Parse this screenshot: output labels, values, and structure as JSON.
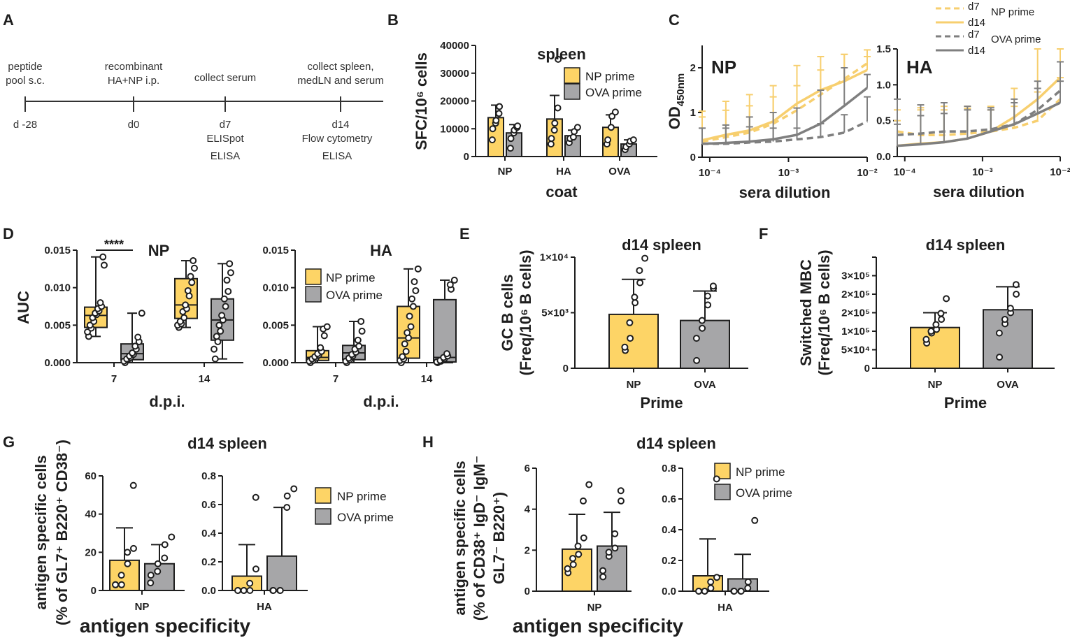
{
  "colors": {
    "np": "#FDD466",
    "ova": "#A6A6A8",
    "np_line": "#F7CF6F",
    "ova_line": "#7F7F7F",
    "axis": "#1e1e1e"
  },
  "panels": {
    "A": "A",
    "B": "B",
    "C": "C",
    "D": "D",
    "E": "E",
    "F": "F",
    "G": "G",
    "H": "H"
  },
  "timeline": {
    "events": [
      {
        "top": "peptide",
        "top2": "pool s.c.",
        "day": "d -28",
        "below1": "",
        "below2": ""
      },
      {
        "top": "recombinant",
        "top2": "HA+NP i.p.",
        "day": "d0",
        "below1": "",
        "below2": ""
      },
      {
        "top": "collect serum",
        "top2": "",
        "day": "d7",
        "below1": "ELISpot",
        "below2": "ELISA"
      },
      {
        "top": "collect spleen,",
        "top2": "medLN and serum",
        "day": "d14",
        "below1": "Flow cytometry",
        "below2": "ELISA"
      }
    ]
  },
  "legend": {
    "np_prime": "NP prime",
    "ova_prime": "OVA prime",
    "d7": "d7",
    "d14": "d14"
  },
  "chart_data": [
    {
      "id": "B",
      "type": "bar",
      "title": "spleen",
      "ylabel": "SFC/10⁶ cells",
      "xlabel": "coat",
      "ylim": [
        0,
        40000
      ],
      "yticks": [
        0,
        10000,
        20000,
        30000,
        40000
      ],
      "categories": [
        "NP",
        "HA",
        "OVA"
      ],
      "series": [
        {
          "name": "NP prime",
          "values": [
            14000,
            13500,
            10500
          ],
          "err": [
            4500,
            8500,
            4500
          ],
          "points": [
            [
              6000,
              10000,
              12000,
              13000,
              15500,
              18000
            ],
            [
              4500,
              6500,
              9500,
              12000,
              17500,
              35000
            ],
            [
              4500,
              6000,
              10500,
              14500,
              16000
            ]
          ]
        },
        {
          "name": "OVA prime",
          "values": [
            8500,
            7500,
            4500
          ],
          "err": [
            3000,
            2000,
            1500
          ],
          "points": [
            [
              3000,
              6500,
              8500,
              9500,
              10500,
              11000
            ],
            [
              5000,
              6500,
              7000,
              9000,
              10500
            ],
            [
              2500,
              3500,
              4500,
              5500,
              6000
            ]
          ]
        }
      ]
    },
    {
      "id": "C-NP",
      "type": "line",
      "title": "NP",
      "ylabel": "OD450nm",
      "xlabel": "sera dilution",
      "xscale": "log",
      "xlim": [
        8e-05,
        0.01
      ],
      "ylim": [
        0,
        2.5
      ],
      "xticks": [
        "10⁻⁴",
        "10⁻³",
        "10⁻²"
      ],
      "yticks": [
        0,
        1,
        2
      ],
      "x": [
        8e-05,
        0.00016,
        0.00032,
        0.00064,
        0.00128,
        0.00256,
        0.00512,
        0.01
      ],
      "series": [
        {
          "name": "NP prime d7",
          "values": [
            0.35,
            0.45,
            0.55,
            0.75,
            1.05,
            1.4,
            1.75,
            2.1
          ],
          "err": [
            0.55,
            0.6,
            0.6,
            0.6,
            0.55,
            0.55,
            0.55,
            0.3
          ]
        },
        {
          "name": "NP prime d14",
          "values": [
            0.38,
            0.5,
            0.6,
            0.8,
            1.2,
            1.5,
            1.7,
            1.95
          ],
          "err": [
            0.65,
            0.75,
            0.8,
            0.8,
            0.85,
            0.75,
            0.6,
            0.3
          ]
        },
        {
          "name": "OVA prime d7",
          "values": [
            0.3,
            0.3,
            0.33,
            0.35,
            0.4,
            0.45,
            0.55,
            0.8
          ],
          "err": [
            0.35,
            0.35,
            0.35,
            0.3,
            0.25,
            0.3,
            0.4,
            0.55
          ]
        },
        {
          "name": "OVA prime d14",
          "values": [
            0.3,
            0.32,
            0.35,
            0.4,
            0.5,
            0.75,
            1.15,
            1.55
          ],
          "err": [
            0.35,
            0.4,
            0.55,
            0.6,
            0.6,
            0.75,
            0.85,
            0.3
          ]
        }
      ]
    },
    {
      "id": "C-HA",
      "type": "line",
      "title": "HA",
      "ylabel": "",
      "xlabel": "sera dilution",
      "xscale": "log",
      "xlim": [
        8e-05,
        0.01
      ],
      "ylim": [
        0,
        1.5
      ],
      "xticks": [
        "10⁻⁴",
        "10⁻³",
        "10⁻²"
      ],
      "yticks": [
        0.0,
        0.5,
        1.0,
        1.5
      ],
      "x": [
        8e-05,
        0.00016,
        0.00032,
        0.00064,
        0.00128,
        0.00256,
        0.00512,
        0.01
      ],
      "series": [
        {
          "name": "NP prime d7",
          "values": [
            0.35,
            0.3,
            0.3,
            0.32,
            0.35,
            0.4,
            0.5,
            0.8
          ],
          "err": [
            0.3,
            0.35,
            0.4,
            0.35,
            0.35,
            0.3,
            0.4,
            0.3
          ]
        },
        {
          "name": "NP prime d14",
          "values": [
            0.15,
            0.18,
            0.2,
            0.25,
            0.35,
            0.55,
            0.8,
            1.1
          ],
          "err": [
            0.35,
            0.5,
            0.45,
            0.45,
            0.3,
            0.4,
            0.7,
            0.4
          ]
        },
        {
          "name": "OVA prime d7",
          "values": [
            0.3,
            0.32,
            0.35,
            0.35,
            0.38,
            0.45,
            0.65,
            0.92
          ],
          "err": [
            0.5,
            0.4,
            0.4,
            0.35,
            0.3,
            0.3,
            0.4,
            0.4
          ]
        },
        {
          "name": "OVA prime d14",
          "values": [
            0.15,
            0.17,
            0.2,
            0.25,
            0.35,
            0.45,
            0.6,
            0.75
          ],
          "err": [
            0.3,
            0.4,
            0.4,
            0.4,
            0.3,
            0.35,
            0.35,
            0.3
          ]
        }
      ]
    },
    {
      "id": "D-NP",
      "type": "box",
      "title": "NP",
      "significance": "****",
      "ylabel": "AUC",
      "xlabel": "d.p.i.",
      "ylim": [
        0,
        0.015
      ],
      "yticks": [
        "0.000",
        "0.005",
        "0.010",
        "0.015"
      ],
      "categories": [
        "7",
        "14"
      ],
      "series": [
        {
          "name": "NP prime",
          "boxes": [
            [
              0.0035,
              0.0047,
              0.0063,
              0.0074,
              0.0141
            ],
            [
              0.0047,
              0.0059,
              0.0077,
              0.0112,
              0.0136
            ]
          ],
          "points": [
            [
              0.0035,
              0.0041,
              0.0046,
              0.005,
              0.0055,
              0.006,
              0.0064,
              0.0066,
              0.0069,
              0.0072,
              0.0075,
              0.008,
              0.013,
              0.0141
            ],
            [
              0.0047,
              0.005,
              0.0052,
              0.0055,
              0.006,
              0.0068,
              0.0072,
              0.0077,
              0.0089,
              0.0096,
              0.0107,
              0.0115,
              0.0126,
              0.0136
            ]
          ]
        },
        {
          "name": "OVA prime",
          "boxes": [
            [
              0.0,
              0.0004,
              0.0012,
              0.0025,
              0.0066
            ],
            [
              0.0005,
              0.003,
              0.0057,
              0.0085,
              0.0132
            ]
          ],
          "points": [
            [
              0.0,
              0.0002,
              0.0004,
              0.0005,
              0.0007,
              0.0009,
              0.0011,
              0.0013,
              0.0018,
              0.0022,
              0.0028,
              0.0034,
              0.0066
            ],
            [
              0.0005,
              0.0018,
              0.0028,
              0.0035,
              0.0042,
              0.005,
              0.0057,
              0.0063,
              0.0075,
              0.0085,
              0.0095,
              0.011,
              0.012,
              0.0132
            ]
          ]
        }
      ]
    },
    {
      "id": "D-HA",
      "type": "box",
      "title": "HA",
      "ylabel": "",
      "xlabel": "d.p.i.",
      "ylim": [
        0,
        0.015
      ],
      "yticks": [
        "0.000",
        "0.005",
        "0.010",
        "0.015"
      ],
      "categories": [
        "7",
        "14"
      ],
      "series": [
        {
          "name": "NP prime",
          "boxes": [
            [
              0.0,
              0.0003,
              0.0007,
              0.0016,
              0.0048
            ],
            [
              0.0,
              0.0006,
              0.0033,
              0.0075,
              0.0125
            ]
          ],
          "points": [
            [
              0.0,
              0.0002,
              0.0003,
              0.0005,
              0.0006,
              0.0008,
              0.001,
              0.0012,
              0.0015,
              0.002,
              0.0036,
              0.0045,
              0.0048
            ],
            [
              0.0,
              0.0003,
              0.0005,
              0.0008,
              0.0015,
              0.0025,
              0.0033,
              0.004,
              0.0048,
              0.0062,
              0.0075,
              0.0085,
              0.0096,
              0.0108,
              0.0125
            ]
          ]
        },
        {
          "name": "OVA prime",
          "boxes": [
            [
              0.0,
              0.0004,
              0.0013,
              0.0023,
              0.0055
            ],
            [
              0.0,
              0.0001,
              0.0007,
              0.0084,
              0.011
            ]
          ],
          "points": [
            [
              0.0,
              0.0002,
              0.0004,
              0.0006,
              0.0009,
              0.0011,
              0.0014,
              0.0018,
              0.0022,
              0.003,
              0.0042,
              0.0055
            ],
            [
              0.0,
              0.0001,
              0.0002,
              0.0003,
              0.0005,
              0.0007,
              0.0009,
              0.0012,
              0.0098,
              0.0104,
              0.011
            ]
          ]
        }
      ]
    },
    {
      "id": "E",
      "type": "bar",
      "title": "d14 spleen",
      "ylabel": "GC B cells",
      "ylabel2": "(Freq/10⁶ B cells)",
      "xlabel": "Prime",
      "ylim": [
        0,
        10000
      ],
      "yticks": [
        "0",
        "5×10³",
        "1×10⁴"
      ],
      "categories": [
        "NP",
        "OVA"
      ],
      "values": [
        4850,
        4300
      ],
      "err": [
        3150,
        2650
      ],
      "points": [
        [
          1600,
          1900,
          2700,
          4100,
          5900,
          6400,
          7700,
          8800,
          9900
        ],
        [
          700,
          2700,
          3600,
          4300,
          5700,
          6500,
          7200,
          7400
        ]
      ]
    },
    {
      "id": "F",
      "type": "bar",
      "title": "d14 spleen",
      "ylabel": "Switched MBC",
      "ylabel2": "(Freq/10⁶ B cells)",
      "xlabel": "Prime",
      "ylim": [
        0,
        300000
      ],
      "yticks": [
        "0",
        "5×10⁴",
        "1×10⁵",
        "2×10⁵",
        "2×10⁵",
        "3×10⁵"
      ],
      "categories": [
        "NP",
        "OVA"
      ],
      "values": [
        110000,
        158000
      ],
      "err": [
        40000,
        62000
      ],
      "points": [
        [
          68000,
          78000,
          95000,
          100000,
          105000,
          118000,
          132000,
          148000,
          188000
        ],
        [
          30000,
          95000,
          120000,
          132000,
          150000,
          162000,
          200000,
          226000
        ]
      ]
    },
    {
      "id": "G-NP",
      "type": "bar",
      "title": "d14 spleen",
      "ylabel": "antigen specific cells",
      "ylabel2": "(% of GL7⁺ B220⁺ CD38⁻)",
      "xlabel": "antigen specificity",
      "ylim": [
        0,
        60
      ],
      "yticks": [
        "0",
        "20",
        "40",
        "60"
      ],
      "categories": [
        "NP"
      ],
      "series": [
        {
          "name": "NP prime",
          "values": [
            15.8
          ],
          "err": [
            17
          ],
          "points": [
            [
              3,
              3,
              3,
              8,
              14,
              20,
              22,
              55
            ]
          ]
        },
        {
          "name": "OVA prime",
          "values": [
            14
          ],
          "err": [
            10
          ],
          "points": [
            [
              4,
              8,
              10,
              14,
              17,
              24,
              28
            ]
          ]
        }
      ]
    },
    {
      "id": "G-HA",
      "type": "bar",
      "ylim": [
        0,
        0.8
      ],
      "yticks": [
        "0.0",
        "0.2",
        "0.4",
        "0.6",
        "0.8"
      ],
      "categories": [
        "HA"
      ],
      "series": [
        {
          "name": "NP prime",
          "values": [
            0.1
          ],
          "err": [
            0.22
          ],
          "points": [
            [
              0,
              0,
              0,
              0,
              0,
              0.05,
              0.15,
              0.65
            ]
          ]
        },
        {
          "name": "OVA prime",
          "values": [
            0.24
          ],
          "err": [
            0.34
          ],
          "points": [
            [
              0,
              0,
              0,
              0,
              0.58,
              0.66,
              0.71
            ]
          ]
        }
      ]
    },
    {
      "id": "H-NP",
      "type": "bar",
      "title": "d14 spleen",
      "ylabel": "antigen specific cells",
      "ylabel2": "(% of CD38⁺ IgD⁻ IgM⁻",
      "ylabel3": "GL7⁻ B220⁺)",
      "xlabel": "antigen specificity",
      "ylim": [
        0,
        6
      ],
      "yticks": [
        "0",
        "2",
        "4",
        "6"
      ],
      "categories": [
        "NP"
      ],
      "series": [
        {
          "name": "NP prime",
          "values": [
            2.05
          ],
          "err": [
            1.7
          ],
          "points": [
            [
              0.9,
              1.1,
              1.3,
              1.6,
              1.8,
              2.2,
              2.6,
              4.4,
              5.2
            ]
          ]
        },
        {
          "name": "OVA prime",
          "values": [
            2.2
          ],
          "err": [
            1.65
          ],
          "points": [
            [
              0.7,
              1.0,
              1.7,
              1.9,
              2.1,
              2.8,
              4.4,
              4.9
            ]
          ]
        }
      ]
    },
    {
      "id": "H-HA",
      "type": "bar",
      "ylim": [
        0,
        0.8
      ],
      "yticks": [
        "0.0",
        "0.2",
        "0.4",
        "0.6",
        "0.8"
      ],
      "categories": [
        "HA"
      ],
      "series": [
        {
          "name": "NP prime",
          "values": [
            0.1
          ],
          "err": [
            0.24
          ],
          "points": [
            [
              0,
              0,
              0,
              0,
              0.02,
              0.06,
              0.09,
              0.73
            ]
          ]
        },
        {
          "name": "OVA prime",
          "values": [
            0.08
          ],
          "err": [
            0.16
          ],
          "points": [
            [
              0,
              0,
              0,
              0,
              0.02,
              0.06,
              0.46
            ]
          ]
        }
      ]
    }
  ]
}
